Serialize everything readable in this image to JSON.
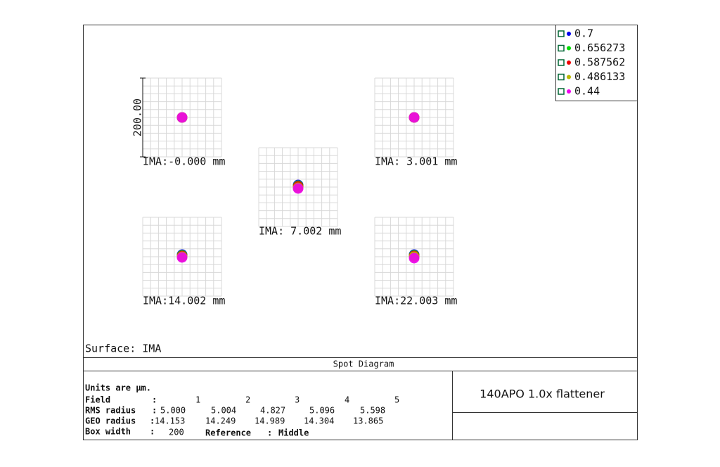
{
  "surface": "Surface: IMA",
  "scale_label": "200.00",
  "legend": [
    {
      "label": "0.7",
      "color": "#0000ee"
    },
    {
      "label": "0.656273",
      "color": "#00dd00"
    },
    {
      "label": "0.587562",
      "color": "#ee0000"
    },
    {
      "label": "0.486133",
      "color": "#b8b800"
    },
    {
      "label": "0.44",
      "color": "#ee00ee"
    }
  ],
  "fields": [
    {
      "label": "IMA:-0.000 mm"
    },
    {
      "label": "IMA: 3.001 mm"
    },
    {
      "label": "IMA: 7.002 mm"
    },
    {
      "label": "IMA:14.002 mm"
    },
    {
      "label": "IMA:22.003 mm"
    }
  ],
  "title": "Spot Diagram",
  "table": {
    "units": "Units are µm.",
    "rows": [
      {
        "label": "Field",
        "sep": ":",
        "values": [
          "1",
          "2",
          "3",
          "4",
          "5"
        ]
      },
      {
        "label": "RMS radius",
        "sep": ":",
        "values": [
          "5.000",
          "5.004",
          "4.827",
          "5.096",
          "5.598"
        ]
      },
      {
        "label": "GEO radius",
        "sep": ":",
        "values": [
          "14.153",
          "14.249",
          "14.989",
          "14.304",
          "13.865"
        ]
      }
    ],
    "box_width": {
      "label": "Box width",
      "sep": ":",
      "value": "200"
    },
    "reference": {
      "label": "Reference",
      "sep": ":",
      "value": "Middle"
    }
  },
  "side_title": "140APO 1.0x flattener"
}
